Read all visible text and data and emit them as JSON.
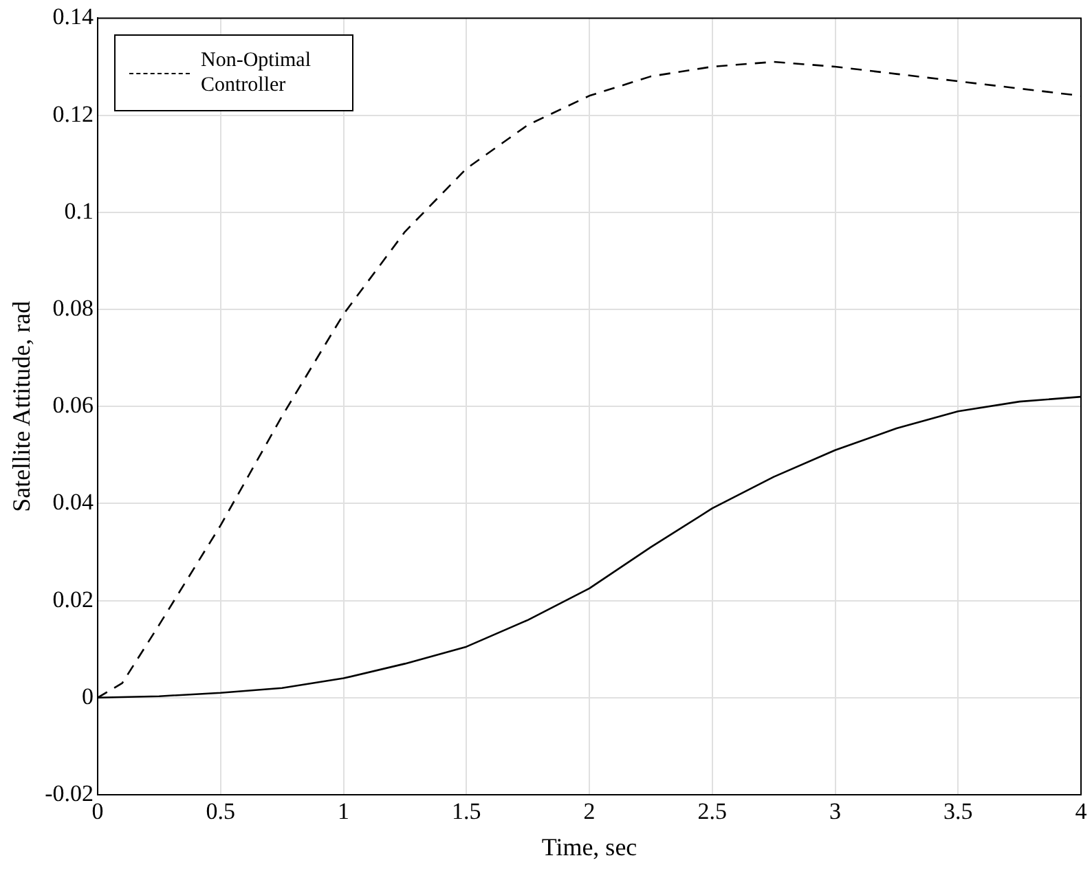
{
  "chart_data": {
    "type": "line",
    "xlabel": "Time, sec",
    "ylabel": "Satellite Attitude, rad",
    "xlim": [
      0,
      4
    ],
    "xticks": [
      0,
      0.5,
      1,
      1.5,
      2,
      2.5,
      3,
      3.5,
      4
    ],
    "ylim": [
      -0.02,
      0.14
    ],
    "yticks": [
      -0.02,
      0,
      0.02,
      0.04,
      0.06,
      0.08,
      0.1,
      0.12,
      0.14
    ],
    "grid": true,
    "legend": "top left",
    "marker": "none",
    "series": [
      {
        "color": "#000000",
        "line_style": "solid",
        "x": [
          0,
          0.25,
          0.5,
          0.75,
          1,
          1.25,
          1.5,
          1.75,
          2,
          2.25,
          2.5,
          2.75,
          3,
          3.25,
          3.5,
          3.75,
          4
        ],
        "values": [
          0,
          0.0003,
          0.001,
          0.002,
          0.004,
          0.007,
          0.0105,
          0.016,
          0.0225,
          0.031,
          0.039,
          0.0455,
          0.051,
          0.0555,
          0.059,
          0.061,
          0.062
        ]
      },
      {
        "name": "Non-Optimal Controller",
        "color": "#000000",
        "line_style": "dashed",
        "x": [
          0,
          0.1,
          0.25,
          0.5,
          0.75,
          1,
          1.25,
          1.5,
          1.75,
          2,
          2.25,
          2.5,
          2.75,
          3,
          3.25,
          3.5,
          3.75,
          4
        ],
        "values": [
          0,
          0.003,
          0.015,
          0.0355,
          0.058,
          0.079,
          0.096,
          0.109,
          0.118,
          0.124,
          0.128,
          0.13,
          0.131,
          0.13,
          0.1285,
          0.127,
          0.1255,
          0.124
        ]
      }
    ]
  }
}
